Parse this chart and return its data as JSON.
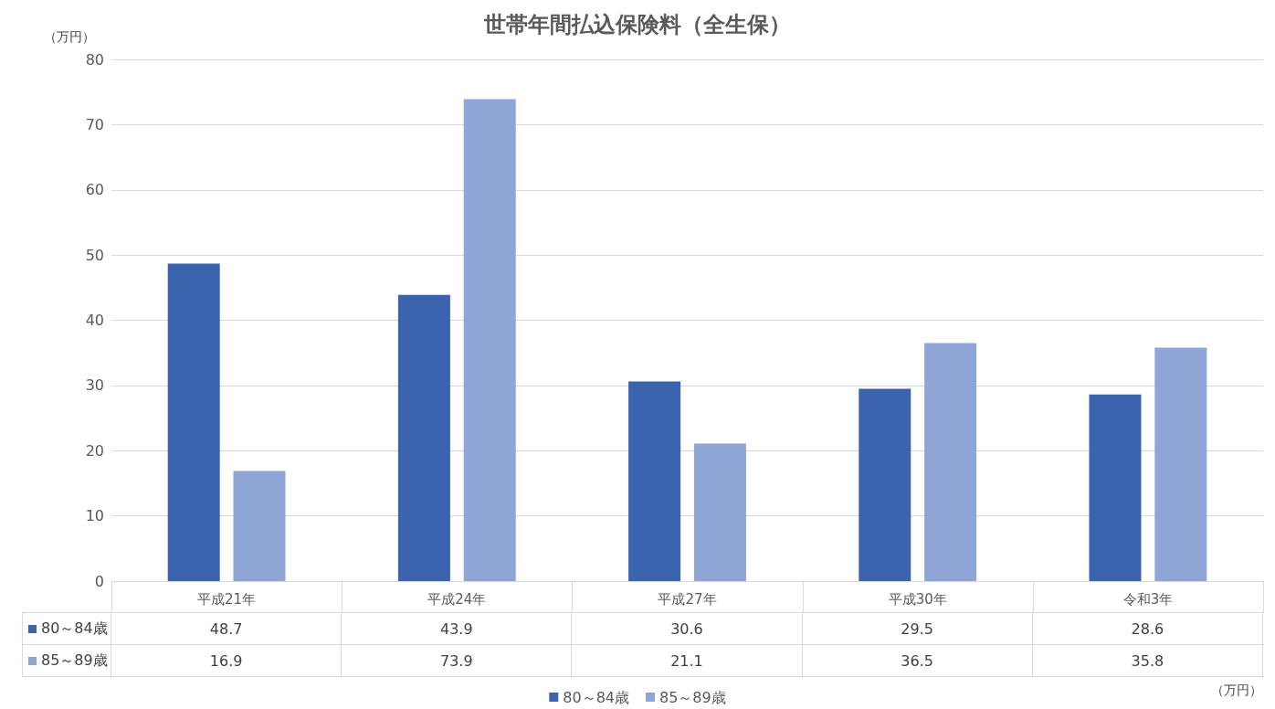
{
  "chart_data": {
    "type": "bar",
    "title": "世帯年間払込保険料（全生保）",
    "ylabel": "（万円）",
    "annotations": [
      "（万円）"
    ],
    "categories": [
      "平成21年",
      "平成24年",
      "平成27年",
      "平成30年",
      "令和3年"
    ],
    "series": [
      {
        "name": "80～84歳",
        "color": "#3c64ae",
        "values": [
          48.7,
          43.9,
          30.6,
          29.5,
          28.6
        ]
      },
      {
        "name": "85～89歳",
        "color": "#8fa5d6",
        "values": [
          16.9,
          73.9,
          21.1,
          36.5,
          35.8
        ]
      }
    ],
    "ylim": [
      0,
      80
    ],
    "yticks": [
      0,
      10,
      20,
      30,
      40,
      50,
      60,
      70,
      80
    ],
    "grid": "y",
    "legend": "bottom",
    "data_labels": true
  }
}
